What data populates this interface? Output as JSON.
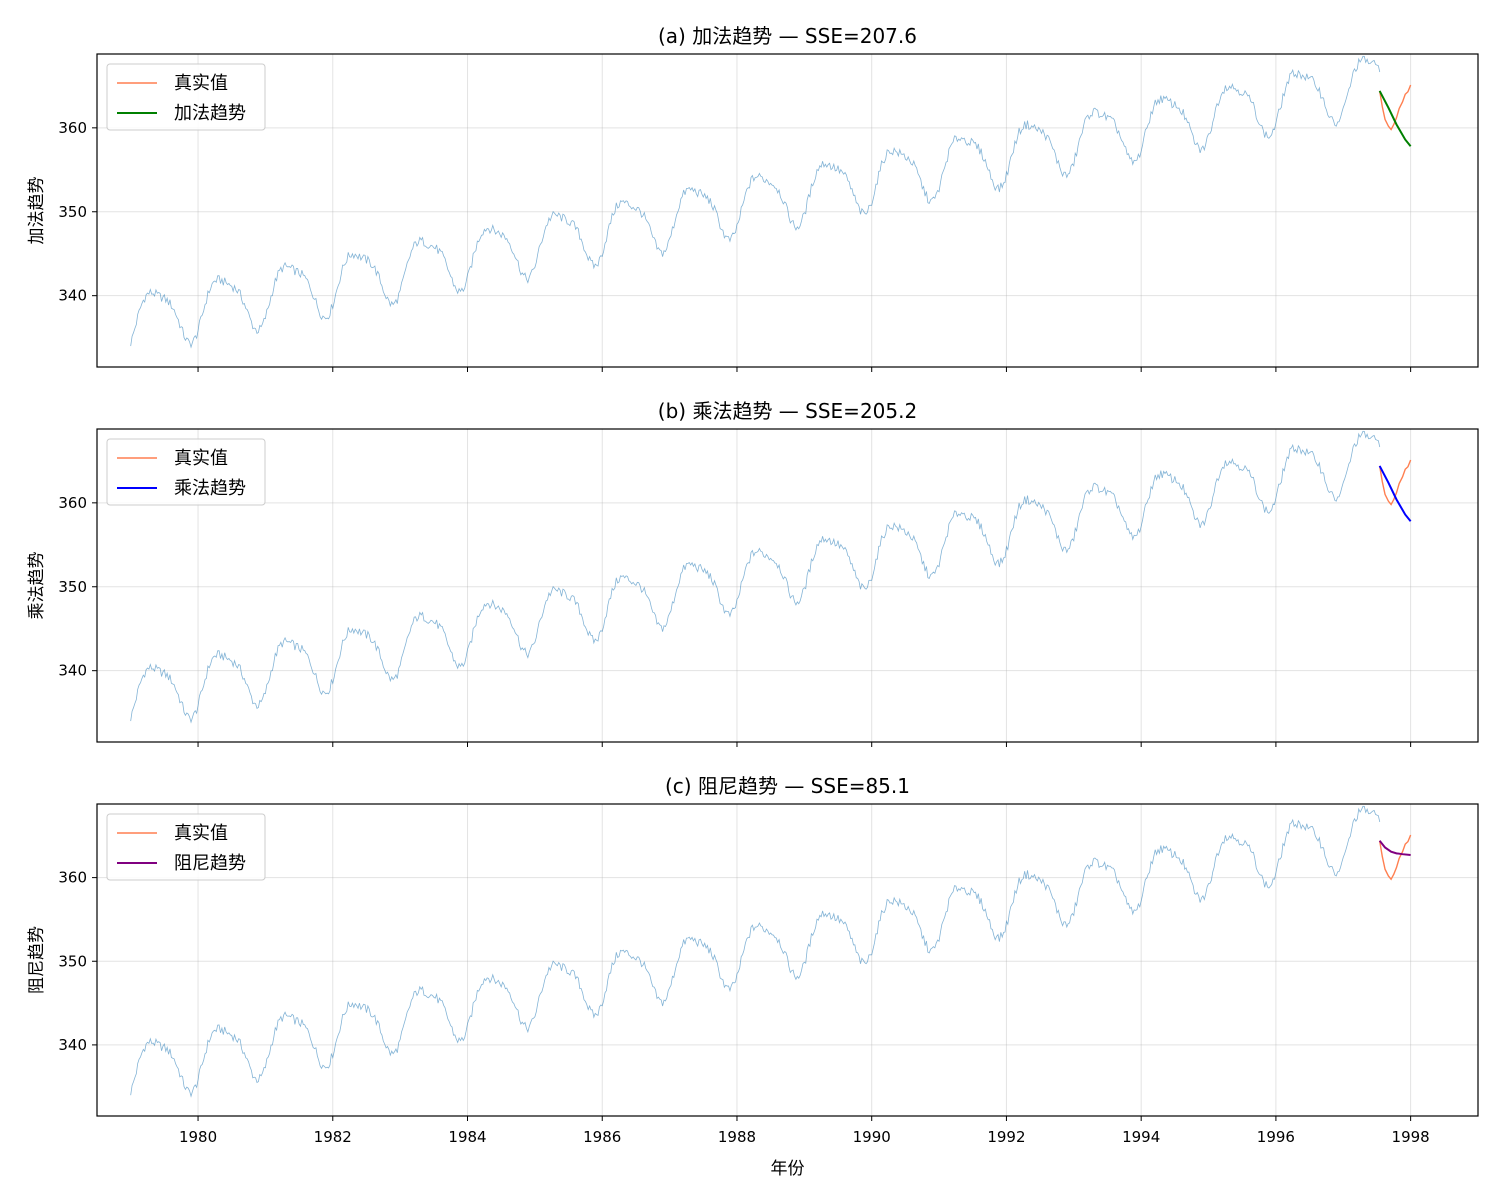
{
  "xlabel": "年份",
  "colors": {
    "observed": "#1f77b4",
    "actual": "#ff7f50",
    "additive": "#008000",
    "multiplicative": "#0000ff",
    "damped": "#800080"
  },
  "chart_data": [
    {
      "type": "line",
      "title": "(a) 加法趋势 — SSE=207.6",
      "ylabel": "加法趋势",
      "xlim": [
        1978.5,
        1999.0
      ],
      "ylim": [
        331.5,
        368.8
      ],
      "yticks": [
        340,
        350,
        360
      ],
      "xticks": [
        1980,
        1982,
        1984,
        1986,
        1988,
        1990,
        1992,
        1994,
        1996,
        1998
      ],
      "grid": true,
      "legend_position": "top-left",
      "legend": [
        "真实值",
        "加法趋势"
      ],
      "forecast_key": "additive",
      "forecast": {
        "x": [
          1997.54,
          1997.67,
          1997.79,
          1997.92,
          1998.0
        ],
        "y": [
          364.4,
          362.4,
          360.4,
          358.6,
          357.8
        ]
      }
    },
    {
      "type": "line",
      "title": "(b) 乘法趋势 — SSE=205.2",
      "ylabel": "乘法趋势",
      "xlim": [
        1978.5,
        1999.0
      ],
      "ylim": [
        331.5,
        368.8
      ],
      "yticks": [
        340,
        350,
        360
      ],
      "xticks": [
        1980,
        1982,
        1984,
        1986,
        1988,
        1990,
        1992,
        1994,
        1996,
        1998
      ],
      "grid": true,
      "legend_position": "top-left",
      "legend": [
        "真实值",
        "乘法趋势"
      ],
      "forecast_key": "multiplicative",
      "forecast": {
        "x": [
          1997.54,
          1997.67,
          1997.79,
          1997.92,
          1998.0
        ],
        "y": [
          364.4,
          362.4,
          360.4,
          358.6,
          357.8
        ]
      }
    },
    {
      "type": "line",
      "title": "(c) 阻尼趋势 — SSE=85.1",
      "ylabel": "阻尼趋势",
      "xlim": [
        1978.5,
        1999.0
      ],
      "ylim": [
        331.5,
        368.8
      ],
      "yticks": [
        340,
        350,
        360
      ],
      "xticks": [
        1980,
        1982,
        1984,
        1986,
        1988,
        1990,
        1992,
        1994,
        1996,
        1998
      ],
      "xlabel": "年份",
      "grid": true,
      "legend_position": "top-left",
      "legend": [
        "真实值",
        "阻尼趋势"
      ],
      "forecast_key": "damped",
      "forecast": {
        "x": [
          1997.54,
          1997.62,
          1997.71,
          1997.79,
          1997.88,
          1998.0
        ],
        "y": [
          364.4,
          363.6,
          363.1,
          362.9,
          362.8,
          362.7
        ]
      }
    }
  ],
  "observed": {
    "description_free": true,
    "x_start": 1979.0,
    "x_end": 1997.54,
    "base_at_start": 337.0,
    "trend_per_year": 1.54,
    "seasonal_amplitude": 3.3,
    "peak_month_fraction": 0.37
  },
  "actual": {
    "x": [
      1997.54,
      1997.58,
      1997.62,
      1997.67,
      1997.71,
      1997.75,
      1997.79,
      1997.83,
      1997.88,
      1997.92,
      1997.96,
      1998.0
    ],
    "y": [
      364.4,
      362.5,
      361.0,
      360.2,
      359.8,
      360.4,
      361.2,
      362.3,
      363.1,
      364.0,
      364.3,
      365.1
    ]
  }
}
